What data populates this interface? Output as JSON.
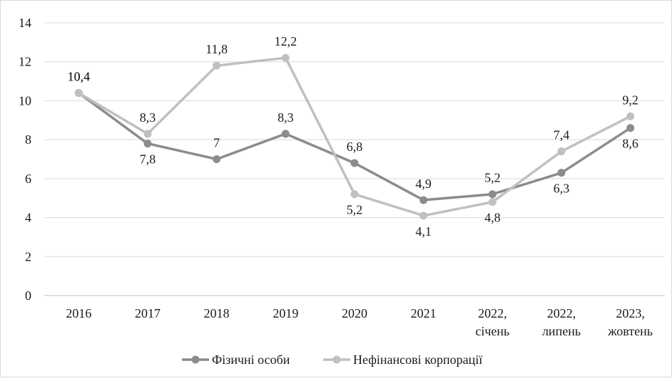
{
  "chart_data": {
    "type": "line",
    "categories": [
      [
        "2016"
      ],
      [
        "2017"
      ],
      [
        "2018"
      ],
      [
        "2019"
      ],
      [
        "2020"
      ],
      [
        "2021"
      ],
      [
        "2022,",
        "січень"
      ],
      [
        "2022,",
        "липень"
      ],
      [
        "2023,",
        "жовтень"
      ]
    ],
    "yticks": [
      "0",
      "2",
      "4",
      "6",
      "8",
      "10",
      "12",
      "14"
    ],
    "ylim": [
      0,
      14
    ],
    "grid": true,
    "legend_position": "bottom",
    "series": [
      {
        "name": "Фізичні особи",
        "color": "#8c8c8c",
        "values": [
          10.4,
          7.8,
          7,
          8.3,
          6.8,
          4.9,
          5.2,
          6.3,
          8.6
        ],
        "labels": [
          "10,4",
          "7,8",
          "7",
          "8,3",
          "6,8",
          "4,9",
          "5,2",
          "6,3",
          "8,6"
        ],
        "label_pos": [
          "above",
          "below",
          "above",
          "above",
          "above",
          "above",
          "above",
          "below",
          "below"
        ]
      },
      {
        "name": "Нефінансові корпорації",
        "color": "#c0c0c0",
        "values": [
          10.4,
          8.3,
          11.8,
          12.2,
          5.2,
          4.1,
          4.8,
          7.4,
          9.2
        ],
        "labels": [
          "10,4",
          "8,3",
          "11,8",
          "12,2",
          "5,2",
          "4,1",
          "4,8",
          "7,4",
          "9,2"
        ],
        "label_pos": [
          "above",
          "above",
          "above",
          "above",
          "below",
          "below",
          "below",
          "above",
          "above"
        ]
      }
    ]
  }
}
